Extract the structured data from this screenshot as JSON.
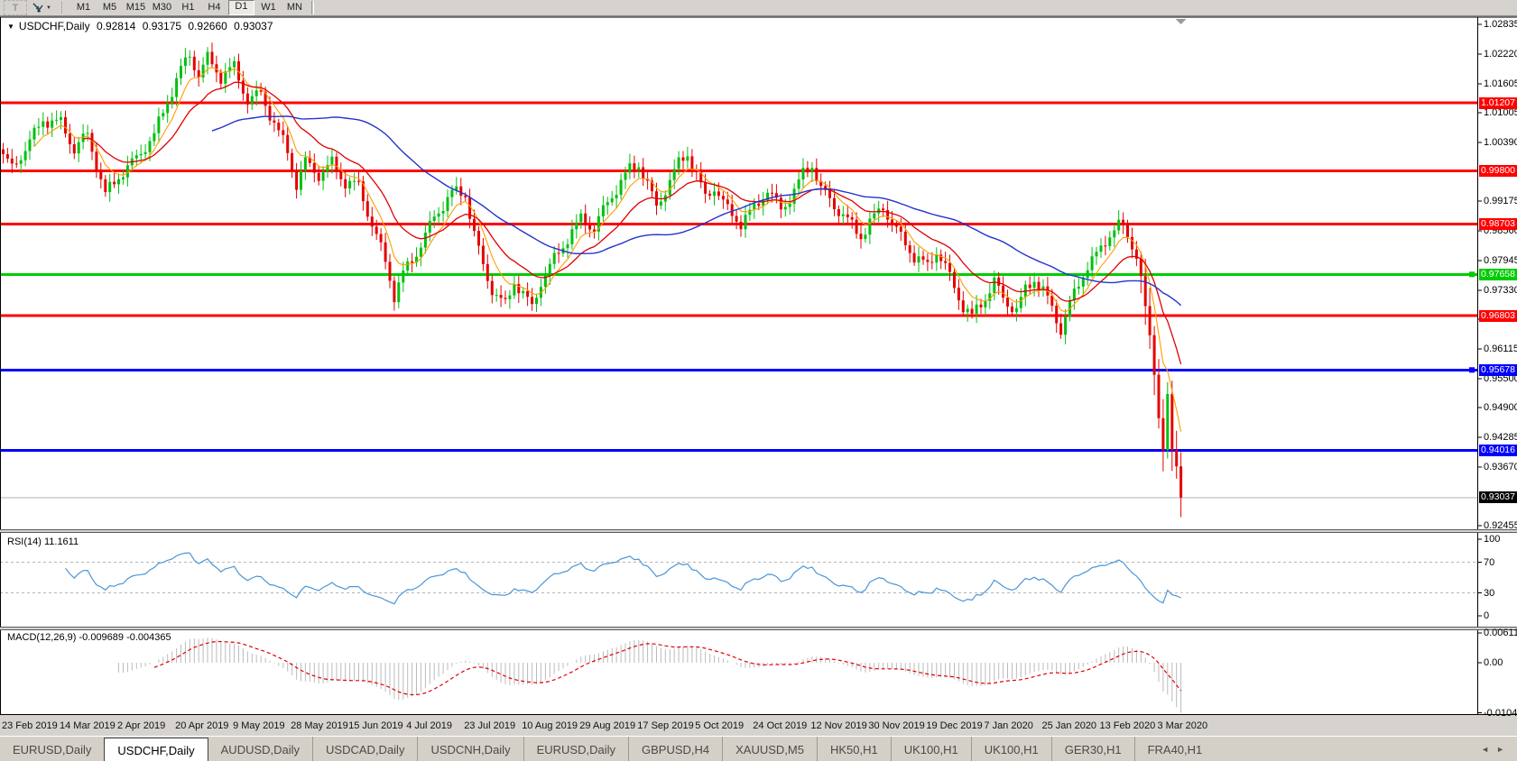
{
  "toolbar": {
    "text_tool_label": "T",
    "timeframes": [
      "M1",
      "M5",
      "M15",
      "M30",
      "H1",
      "H4",
      "D1",
      "W1",
      "MN"
    ],
    "active_timeframe": "D1"
  },
  "chart": {
    "symbol_label": "USDCHF,Daily",
    "ohlc": {
      "open": "0.92814",
      "high": "0.93175",
      "low": "0.92660",
      "close": "0.93037"
    },
    "rsi_name": "RSI(14)",
    "rsi_value": "11.1611",
    "macd_name": "MACD(12,26,9)",
    "macd_values": "-0.009689 -0.004365"
  },
  "chart_data": {
    "type": "candlestick",
    "symbol": "USDCHF",
    "timeframe": "Daily",
    "bar_count": 266,
    "bars_per_label": 13,
    "x_labels": [
      "23 Feb 2019",
      "14 Mar 2019",
      "2 Apr 2019",
      "20 Apr 2019",
      "9 May 2019",
      "28 May 2019",
      "15 Jun 2019",
      "4 Jul 2019",
      "23 Jul 2019",
      "10 Aug 2019",
      "29 Aug 2019",
      "17 Sep 2019",
      "5 Oct 2019",
      "24 Oct 2019",
      "12 Nov 2019",
      "30 Nov 2019",
      "19 Dec 2019",
      "7 Jan 2020",
      "25 Jan 2020",
      "13 Feb 2020",
      "3 Mar 2020"
    ],
    "close_anchors": [
      [
        0,
        1.0005
      ],
      [
        2,
        0.9982
      ],
      [
        6,
        1.0048
      ],
      [
        9,
        1.0092
      ],
      [
        13,
        1.0075
      ],
      [
        16,
        1.0018
      ],
      [
        19,
        1.0052
      ],
      [
        23,
        0.9938
      ],
      [
        26,
        0.9975
      ],
      [
        30,
        1.0002
      ],
      [
        34,
        1.0048
      ],
      [
        37,
        1.0125
      ],
      [
        40,
        1.0196
      ],
      [
        42,
        1.0228
      ],
      [
        44,
        1.0182
      ],
      [
        46,
        1.0212
      ],
      [
        49,
        1.0168
      ],
      [
        52,
        1.019
      ],
      [
        55,
        1.0128
      ],
      [
        58,
        1.0148
      ],
      [
        61,
        1.0082
      ],
      [
        64,
        1.0018
      ],
      [
        66,
        0.9945
      ],
      [
        68,
        0.9992
      ],
      [
        71,
        0.9972
      ],
      [
        74,
        1.0002
      ],
      [
        77,
        0.9962
      ],
      [
        80,
        0.9948
      ],
      [
        83,
        0.9862
      ],
      [
        86,
        0.9788
      ],
      [
        88,
        0.9722
      ],
      [
        90,
        0.9772
      ],
      [
        93,
        0.9818
      ],
      [
        97,
        0.9882
      ],
      [
        101,
        0.9928
      ],
      [
        104,
        0.993
      ],
      [
        106,
        0.9852
      ],
      [
        108,
        0.9788
      ],
      [
        110,
        0.9742
      ],
      [
        113,
        0.9702
      ],
      [
        115,
        0.9748
      ],
      [
        117,
        0.9718
      ],
      [
        119,
        0.969
      ],
      [
        121,
        0.9748
      ],
      [
        124,
        0.9802
      ],
      [
        127,
        0.9848
      ],
      [
        130,
        0.9882
      ],
      [
        133,
        0.9855
      ],
      [
        136,
        0.9908
      ],
      [
        139,
        0.9958
      ],
      [
        141,
        0.9988
      ],
      [
        143,
        1.0002
      ],
      [
        145,
        0.9958
      ],
      [
        147,
        0.9905
      ],
      [
        149,
        0.9938
      ],
      [
        152,
        0.9988
      ],
      [
        154,
        1.0012
      ],
      [
        156,
        0.9972
      ],
      [
        158,
        0.993
      ],
      [
        160,
        0.9955
      ],
      [
        163,
        0.9902
      ],
      [
        166,
        0.9868
      ],
      [
        169,
        0.9895
      ],
      [
        172,
        0.9938
      ],
      [
        175,
        0.9905
      ],
      [
        178,
        0.9945
      ],
      [
        180,
        0.9978
      ],
      [
        182,
        0.9992
      ],
      [
        184,
        0.9935
      ],
      [
        187,
        0.9902
      ],
      [
        190,
        0.9878
      ],
      [
        193,
        0.9852
      ],
      [
        195,
        0.988
      ],
      [
        198,
        0.9908
      ],
      [
        200,
        0.9868
      ],
      [
        202,
        0.9835
      ],
      [
        205,
        0.9798
      ],
      [
        208,
        0.9785
      ],
      [
        210,
        0.9822
      ],
      [
        212,
        0.9788
      ],
      [
        214,
        0.9742
      ],
      [
        216,
        0.9698
      ],
      [
        218,
        0.9672
      ],
      [
        221,
        0.9712
      ],
      [
        223,
        0.9748
      ],
      [
        225,
        0.9718
      ],
      [
        228,
        0.97
      ],
      [
        230,
        0.9738
      ],
      [
        232,
        0.9758
      ],
      [
        234,
        0.9728
      ],
      [
        236,
        0.9688
      ],
      [
        238,
        0.9645
      ],
      [
        240,
        0.9702
      ],
      [
        242,
        0.9748
      ],
      [
        244,
        0.9792
      ],
      [
        247,
        0.9822
      ],
      [
        249,
        0.9852
      ],
      [
        251,
        0.9866
      ],
      [
        253,
        0.9838
      ],
      [
        255,
        0.9798
      ],
      [
        256,
        0.9762
      ],
      [
        257,
        0.97
      ],
      [
        258,
        0.964
      ],
      [
        259,
        0.9558
      ],
      [
        260,
        0.9468
      ],
      [
        261,
        0.9402
      ],
      [
        262,
        0.9518
      ],
      [
        263,
        0.9402
      ],
      [
        264,
        0.9368
      ],
      [
        265,
        0.93037
      ]
    ],
    "price_ticks": [
      "1.02835",
      "1.02220",
      "1.01605",
      "1.01005",
      "1.00390",
      "0.99175",
      "0.98560",
      "0.97945",
      "0.97330",
      "0.96730",
      "0.96115",
      "0.95500",
      "0.94900",
      "0.94285",
      "0.93670",
      "0.92455"
    ],
    "hlines": [
      {
        "price": 1.01207,
        "label": "1.01207",
        "color": "#ff0000",
        "width": 3,
        "handles": false
      },
      {
        "price": 0.998,
        "label": "0.99800",
        "color": "#ff0000",
        "width": 3,
        "handles": false
      },
      {
        "price": 0.98703,
        "label": "0.98703",
        "color": "#ff0000",
        "width": 3,
        "handles": false
      },
      {
        "price": 0.97658,
        "label": "0.97658",
        "color": "#00cc00",
        "width": 3,
        "handles": true
      },
      {
        "price": 0.96803,
        "label": "0.96803",
        "color": "#ff0000",
        "width": 3,
        "handles": false
      },
      {
        "price": 0.95678,
        "label": "0.95678",
        "color": "#0000ff",
        "width": 3,
        "handles": true
      },
      {
        "price": 0.94016,
        "label": "0.94016",
        "color": "#0000ff",
        "width": 3,
        "handles": false
      }
    ],
    "current_price": {
      "value": 0.93037,
      "label": "0.93037",
      "line_color": "#b0b0b0",
      "badge_color": "#000000"
    },
    "moving_averages": [
      {
        "name": "fast",
        "type": "ema",
        "period": 7,
        "color": "#ff9d00"
      },
      {
        "name": "mid",
        "type": "ema",
        "period": 18,
        "color": "#e00000"
      },
      {
        "name": "slow",
        "type": "sma",
        "period": 48,
        "color": "#2333cc"
      }
    ],
    "candle_colors": {
      "bull": "#00c010",
      "bear": "#e60000"
    },
    "rsi": {
      "period": 14,
      "value": 11.1611,
      "color": "#4a96d8",
      "levels": [
        70,
        30
      ],
      "axis_labels": [
        {
          "text": "100",
          "v": 100
        },
        {
          "text": "70",
          "v": 70
        },
        {
          "text": "30",
          "v": 30
        },
        {
          "text": "0",
          "v": 0
        }
      ]
    },
    "macd": {
      "fast": 12,
      "slow": 26,
      "signal": 9,
      "hist_value": -0.009689,
      "signal_value": -0.004365,
      "hist_color": "#bbbbbb",
      "signal_color": "#e00000",
      "axis_labels": [
        {
          "text": "0.006115",
          "v": 0.006115
        },
        {
          "text": "0.00",
          "v": 0
        },
        {
          "text": "-0.010441",
          "v": -0.010441
        }
      ]
    }
  },
  "tabs": {
    "items": [
      "EURUSD,Daily",
      "USDCHF,Daily",
      "AUDUSD,Daily",
      "USDCAD,Daily",
      "USDCNH,Daily",
      "EURUSD,Daily",
      "GBPUSD,H4",
      "XAUUSD,M5",
      "HK50,H1",
      "UK100,H1",
      "UK100,H1",
      "GER30,H1",
      "FRA40,H1"
    ],
    "active_index": 1,
    "scroll_left": "◄",
    "scroll_right": "►"
  }
}
